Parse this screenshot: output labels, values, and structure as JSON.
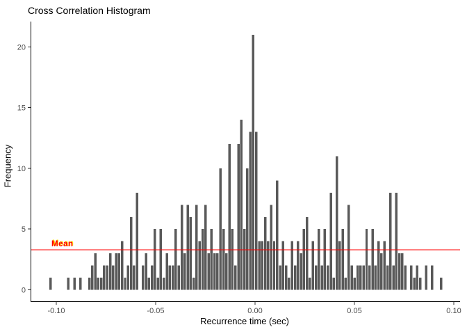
{
  "chart_data": {
    "type": "bar",
    "subtype": "histogram",
    "title": "Cross Correlation Histogram",
    "xlabel": "Recurrence time (sec)",
    "ylabel": "Frequency",
    "bar_color": "#595959",
    "axis_line_color": "#000000",
    "tick_label_color": "#4D4D4D",
    "background_color": "#FFFFFF",
    "grid": "off",
    "legend": "none",
    "bin_start": -0.1035,
    "bin_width": 0.0015,
    "counts": [
      1,
      0,
      0,
      0,
      0,
      0,
      1,
      0,
      1,
      0,
      1,
      0,
      0,
      1,
      2,
      3,
      1,
      1,
      2,
      2,
      3,
      2,
      3,
      3,
      4,
      1,
      2,
      6,
      2,
      8,
      0,
      2,
      3,
      1,
      2,
      5,
      1,
      5,
      1,
      3,
      2,
      2,
      5,
      2,
      7,
      3,
      7,
      6,
      1,
      7,
      4,
      5,
      7,
      3,
      5,
      3,
      3,
      10,
      5,
      3,
      12,
      5,
      2,
      12,
      14,
      5,
      10,
      13,
      21,
      13,
      4,
      4,
      6,
      4,
      7,
      4,
      9,
      2,
      4,
      2,
      1,
      4,
      2,
      4,
      3,
      5,
      6,
      1,
      4,
      2,
      5,
      2,
      5,
      2,
      8,
      1,
      11,
      4,
      5,
      1,
      7,
      2,
      1,
      2,
      2,
      2,
      5,
      2,
      5,
      2,
      4,
      3,
      4,
      2,
      8,
      2,
      8,
      3,
      3,
      2,
      0,
      2,
      1,
      2,
      1,
      0,
      2,
      0,
      2,
      0,
      0,
      1
    ],
    "mean_line": {
      "label": "Mean",
      "value": 3.3,
      "color": "#FF0000"
    },
    "x_ticks": {
      "values": [
        -0.1,
        -0.05,
        0.0,
        0.05,
        0.1
      ],
      "labels": [
        "-0.10",
        "-0.05",
        "0.00",
        "0.05",
        "0.10"
      ]
    },
    "y_ticks": {
      "values": [
        0,
        5,
        10,
        15,
        20
      ],
      "labels": [
        "0",
        "5",
        "10",
        "15",
        "20"
      ]
    },
    "xlim": [
      -0.11294,
      0.10314
    ],
    "ylim": [
      -0.945,
      22.08
    ]
  }
}
